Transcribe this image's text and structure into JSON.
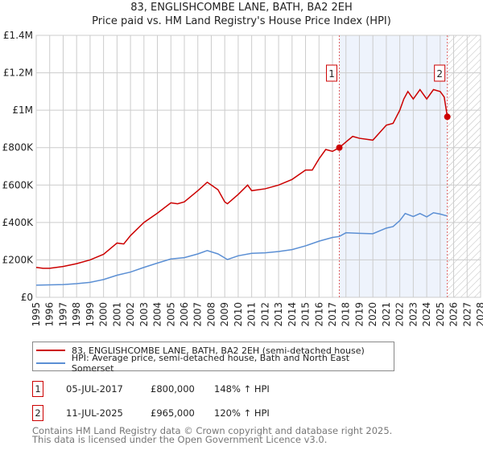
{
  "title": "83, ENGLISHCOMBE LANE, BATH, BA2 2EH",
  "subtitle": "Price paid vs. HM Land Registry's House Price Index (HPI)",
  "colors": {
    "property": "#cc0000",
    "hpi": "#5b8fd4",
    "shade": "#eef3fc",
    "grid": "#cccccc"
  },
  "chart_data": {
    "type": "line",
    "title": "83, ENGLISHCOMBE LANE, BATH, BA2 2EH",
    "xlim": [
      1995,
      2028
    ],
    "ylim": [
      0,
      1400000
    ],
    "grid": true,
    "xticks": [
      "1995",
      "1996",
      "1997",
      "1998",
      "1999",
      "2000",
      "2001",
      "2002",
      "2003",
      "2004",
      "2005",
      "2006",
      "2007",
      "2008",
      "2009",
      "2010",
      "2011",
      "2012",
      "2013",
      "2014",
      "2015",
      "2016",
      "2017",
      "2018",
      "2019",
      "2020",
      "2021",
      "2022",
      "2023",
      "2024",
      "2025",
      "2026",
      "2027",
      "2028"
    ],
    "yticks": [
      {
        "v": 0,
        "label": "£0"
      },
      {
        "v": 200000,
        "label": "£200K"
      },
      {
        "v": 400000,
        "label": "£400K"
      },
      {
        "v": 600000,
        "label": "£600K"
      },
      {
        "v": 800000,
        "label": "£800K"
      },
      {
        "v": 1000000,
        "label": "£1M"
      },
      {
        "v": 1200000,
        "label": "£1.2M"
      },
      {
        "v": 1400000,
        "label": "£1.4M"
      }
    ],
    "shaded_range": [
      2017.51,
      2025.53
    ],
    "forecast_hatch_from": 2025.53,
    "series": [
      {
        "name": "83, ENGLISHCOMBE LANE, BATH, BA2 2EH (semi-detached house)",
        "x": [
          1995,
          1995.5,
          1996,
          1997,
          1998,
          1999,
          2000,
          2001,
          2001.5,
          2002,
          2003,
          2004,
          2005,
          2005.5,
          2006,
          2007,
          2007.7,
          2008,
          2008.5,
          2009,
          2009.2,
          2010,
          2010.7,
          2011,
          2012,
          2013,
          2014,
          2015,
          2015.5,
          2016,
          2016.5,
          2017,
          2017.51,
          2018,
          2018.5,
          2019,
          2020,
          2020.5,
          2021,
          2021.5,
          2022,
          2022.3,
          2022.6,
          2023,
          2023.5,
          2024,
          2024.5,
          2025,
          2025.3,
          2025.53
        ],
        "y": [
          160000,
          155000,
          155000,
          165000,
          180000,
          200000,
          230000,
          290000,
          285000,
          330000,
          400000,
          450000,
          505000,
          500000,
          510000,
          570000,
          615000,
          600000,
          575000,
          510000,
          500000,
          550000,
          600000,
          570000,
          580000,
          600000,
          630000,
          680000,
          680000,
          740000,
          790000,
          780000,
          800000,
          830000,
          860000,
          850000,
          840000,
          880000,
          920000,
          930000,
          1000000,
          1060000,
          1100000,
          1060000,
          1110000,
          1060000,
          1110000,
          1100000,
          1070000,
          965000
        ]
      },
      {
        "name": "HPI: Average price, semi-detached house, Bath and North East Somerset",
        "x": [
          1995,
          1997,
          1998,
          1999,
          2000,
          2001,
          2002,
          2003,
          2004,
          2005,
          2006,
          2007,
          2007.7,
          2008.5,
          2009.2,
          2010,
          2011,
          2012,
          2013,
          2014,
          2015,
          2016,
          2017,
          2017.5,
          2018,
          2019,
          2020,
          2021,
          2021.5,
          2022,
          2022.4,
          2023,
          2023.5,
          2024,
          2024.5,
          2025,
          2025.5
        ],
        "y": [
          65000,
          68000,
          73000,
          80000,
          95000,
          118000,
          135000,
          160000,
          183000,
          205000,
          212000,
          232000,
          250000,
          232000,
          202000,
          222000,
          235000,
          238000,
          245000,
          255000,
          275000,
          300000,
          320000,
          325000,
          345000,
          342000,
          340000,
          370000,
          378000,
          410000,
          448000,
          432000,
          448000,
          430000,
          452000,
          445000,
          435000
        ]
      }
    ],
    "annotations": [
      {
        "label": "1",
        "x": 2017.51,
        "y": 800000
      },
      {
        "label": "2",
        "x": 2025.53,
        "y": 965000
      }
    ]
  },
  "legend": [
    {
      "label": "83, ENGLISHCOMBE LANE, BATH, BA2 2EH (semi-detached house)"
    },
    {
      "label": "HPI: Average price, semi-detached house, Bath and North East Somerset"
    }
  ],
  "transactions": [
    {
      "num": "1",
      "date": "05-JUL-2017",
      "price": "£800,000",
      "hpi": "148% ↑ HPI"
    },
    {
      "num": "2",
      "date": "11-JUL-2025",
      "price": "£965,000",
      "hpi": "120% ↑ HPI"
    }
  ],
  "footer": {
    "line1": "Contains HM Land Registry data © Crown copyright and database right 2025.",
    "line2": "This data is licensed under the Open Government Licence v3.0."
  }
}
